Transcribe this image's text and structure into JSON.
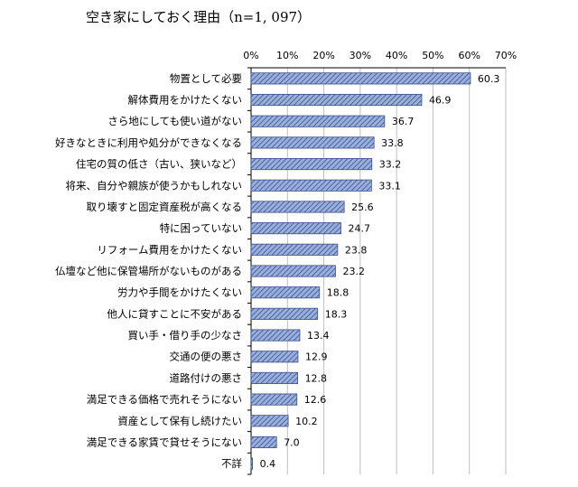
{
  "chart_data": {
    "type": "bar",
    "orientation": "horizontal",
    "title": "空き家にしておく理由（n=1, 097）",
    "categories": [
      "物置として必要",
      "解体費用をかけたくない",
      "さら地にしても使い道がない",
      "好きなときに利用や処分ができなくなる",
      "住宅の質の低さ（古い、狭いなど）",
      "将来、自分や親族が使うかもしれない",
      "取り壊すと固定資産税が高くなる",
      "特に困っていない",
      "リフォーム費用をかけたくない",
      "仏壇など他に保管場所がないものがある",
      "労力や手間をかけたくない",
      "他人に貸すことに不安がある",
      "買い手・借り手の少なさ",
      "交通の便の悪さ",
      "道路付けの悪さ",
      "満足できる価格で売れそうにない",
      "資産として保有し続けたい",
      "満足できる家賃で貸せそうにない",
      "不詳"
    ],
    "values": [
      60.3,
      46.9,
      36.7,
      33.8,
      33.2,
      33.1,
      25.6,
      24.7,
      23.8,
      23.2,
      18.8,
      18.3,
      13.4,
      12.9,
      12.8,
      12.6,
      10.2,
      7.0,
      0.4
    ],
    "value_labels": [
      "60.3",
      "46.9",
      "36.7",
      "33.8",
      "33.2",
      "33.1",
      "25.6",
      "24.7",
      "23.8",
      "23.2",
      "18.8",
      "18.3",
      "13.4",
      "12.9",
      "12.8",
      "12.6",
      "10.2",
      "7.0",
      "0.4"
    ],
    "xlim": [
      0,
      70
    ],
    "xticks": [
      "0%",
      "10%",
      "20%",
      "30%",
      "40%",
      "50%",
      "60%",
      "70%"
    ],
    "grid": true,
    "legend": "none",
    "bar_color": "#9ab0dc",
    "hatch_color": "#3a4f8c",
    "grid_color": "#bfbfbf"
  }
}
